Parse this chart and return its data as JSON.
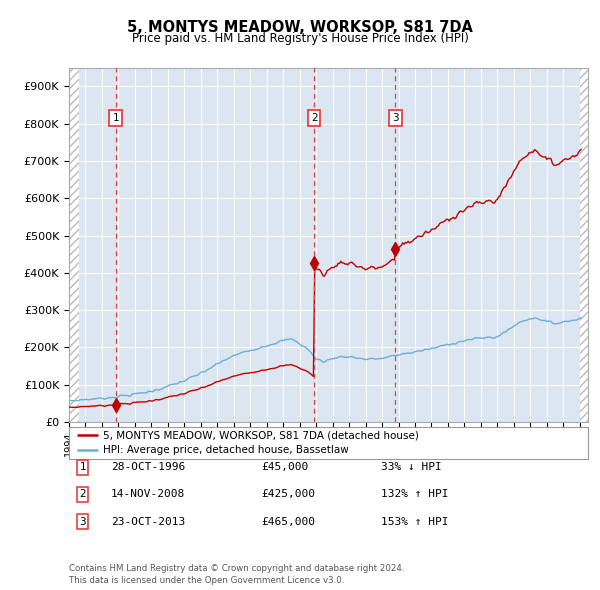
{
  "title": "5, MONTYS MEADOW, WORKSOP, S81 7DA",
  "subtitle": "Price paid vs. HM Land Registry's House Price Index (HPI)",
  "ylim": [
    0,
    950000
  ],
  "xlim_start": 1994.0,
  "xlim_end": 2025.5,
  "hpi_color": "#6baed6",
  "price_color": "#c00000",
  "dashed_line_color": "#e84040",
  "background_color": "#dce6f1",
  "sales": [
    {
      "date_num": 1996.83,
      "price": 45000,
      "label": "1"
    },
    {
      "date_num": 2008.88,
      "price": 425000,
      "label": "2"
    },
    {
      "date_num": 2013.81,
      "price": 465000,
      "label": "3"
    }
  ],
  "sale_table": [
    {
      "num": "1",
      "date": "28-OCT-1996",
      "price": "£45,000",
      "pct": "33% ↓ HPI"
    },
    {
      "num": "2",
      "date": "14-NOV-2008",
      "price": "£425,000",
      "pct": "132% ↑ HPI"
    },
    {
      "num": "3",
      "date": "23-OCT-2013",
      "price": "£465,000",
      "pct": "153% ↑ HPI"
    }
  ],
  "legend_entries": [
    "5, MONTYS MEADOW, WORKSOP, S81 7DA (detached house)",
    "HPI: Average price, detached house, Bassetlaw"
  ],
  "footer": "Contains HM Land Registry data © Crown copyright and database right 2024.\nThis data is licensed under the Open Government Licence v3.0.",
  "ytick_labels": [
    "£0",
    "£100K",
    "£200K",
    "£300K",
    "£400K",
    "£500K",
    "£600K",
    "£700K",
    "£800K",
    "£900K"
  ],
  "ytick_values": [
    0,
    100000,
    200000,
    300000,
    400000,
    500000,
    600000,
    700000,
    800000,
    900000
  ]
}
